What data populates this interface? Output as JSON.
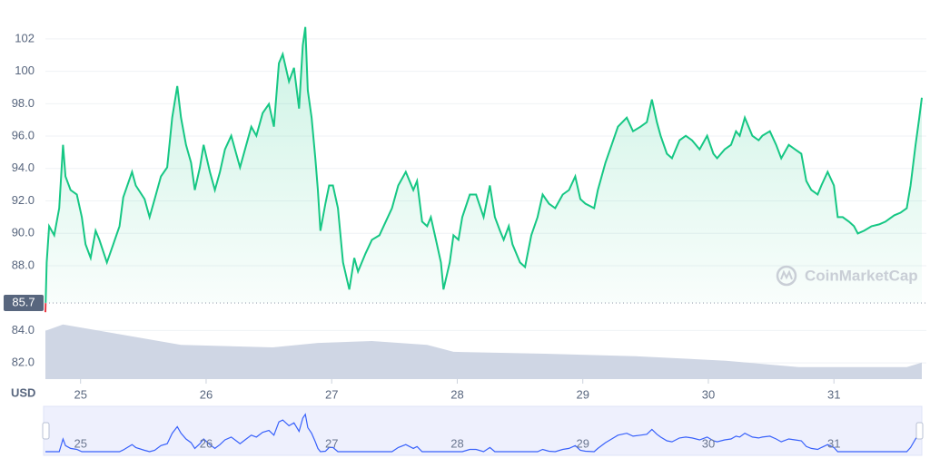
{
  "chart_data": {
    "type": "line",
    "currency": "USD",
    "watermark": "CoinMarketCap",
    "baseline": 85.7,
    "x": [
      24.72,
      24.73,
      24.75,
      24.79,
      24.83,
      24.86,
      24.88,
      24.92,
      24.97,
      25.01,
      25.04,
      25.08,
      25.12,
      25.15,
      25.21,
      25.26,
      25.31,
      25.34,
      25.41,
      25.44,
      25.51,
      25.55,
      25.59,
      25.64,
      25.69,
      25.73,
      25.77,
      25.8,
      25.84,
      25.88,
      25.91,
      25.95,
      25.98,
      26.03,
      26.07,
      26.11,
      26.15,
      26.2,
      26.24,
      26.27,
      26.31,
      26.36,
      26.4,
      26.45,
      26.5,
      26.54,
      26.58,
      26.61,
      26.66,
      26.7,
      26.74,
      26.77,
      26.79,
      26.81,
      26.84,
      26.87,
      26.89,
      26.91,
      26.95,
      26.98,
      27.01,
      27.05,
      27.09,
      27.14,
      27.18,
      27.21,
      27.27,
      27.32,
      27.38,
      27.43,
      27.48,
      27.53,
      27.59,
      27.65,
      27.68,
      27.72,
      27.76,
      27.79,
      27.83,
      27.87,
      27.89,
      27.94,
      27.97,
      28.01,
      28.04,
      28.1,
      28.15,
      28.21,
      28.26,
      28.3,
      28.34,
      28.37,
      28.41,
      28.44,
      28.5,
      28.54,
      28.59,
      28.64,
      28.68,
      28.73,
      28.78,
      28.84,
      28.89,
      28.94,
      28.98,
      29.02,
      29.09,
      29.12,
      29.18,
      29.23,
      29.28,
      29.35,
      29.4,
      29.46,
      29.51,
      29.55,
      29.59,
      29.62,
      29.67,
      29.71,
      29.77,
      29.82,
      29.87,
      29.93,
      29.99,
      30.04,
      30.07,
      30.13,
      30.18,
      30.22,
      30.25,
      30.29,
      30.35,
      30.4,
      30.43,
      30.49,
      30.54,
      30.58,
      30.64,
      30.69,
      30.74,
      30.78,
      30.82,
      30.87,
      30.9,
      30.95,
      31.0,
      31.03,
      31.07,
      31.12,
      31.16,
      31.19,
      31.24,
      31.3,
      31.36,
      31.41,
      31.48,
      31.53,
      31.58,
      31.61,
      31.65,
      31.68,
      31.7
    ],
    "series": [
      {
        "color": "#16c784",
        "down_color": "#ea3943",
        "values": [
          85.13,
          88.2,
          90.44,
          89.88,
          91.55,
          95.46,
          93.51,
          92.67,
          92.39,
          91.0,
          89.32,
          88.48,
          90.16,
          89.6,
          88.2,
          89.32,
          90.44,
          92.22,
          93.79,
          92.95,
          92.11,
          91.0,
          92.11,
          93.51,
          94.07,
          97.14,
          99.09,
          97.14,
          95.46,
          94.35,
          92.67,
          94.07,
          95.46,
          93.79,
          92.67,
          93.79,
          95.18,
          96.02,
          94.91,
          94.07,
          95.18,
          96.58,
          96.02,
          97.42,
          97.98,
          96.58,
          100.49,
          101.05,
          99.37,
          100.21,
          97.7,
          101.61,
          102.73,
          98.82,
          97.14,
          94.63,
          92.67,
          90.16,
          91.83,
          92.95,
          92.95,
          91.55,
          88.2,
          86.53,
          88.48,
          87.64,
          88.76,
          89.6,
          89.88,
          90.72,
          91.55,
          92.95,
          93.79,
          92.67,
          93.23,
          90.72,
          90.44,
          91.0,
          89.6,
          88.2,
          86.53,
          88.2,
          89.88,
          89.6,
          91.0,
          92.39,
          92.39,
          91.0,
          92.95,
          91.0,
          90.16,
          89.6,
          90.44,
          89.32,
          88.2,
          87.92,
          89.88,
          91.0,
          92.39,
          91.83,
          91.55,
          92.39,
          92.67,
          93.51,
          92.11,
          91.83,
          91.55,
          92.67,
          94.35,
          95.46,
          96.58,
          97.14,
          96.3,
          96.58,
          96.86,
          98.26,
          96.86,
          96.02,
          94.91,
          94.63,
          95.74,
          96.02,
          95.74,
          95.18,
          96.02,
          94.91,
          94.63,
          95.18,
          95.46,
          96.3,
          96.02,
          97.14,
          96.02,
          95.74,
          96.02,
          96.3,
          95.46,
          94.63,
          95.46,
          95.18,
          94.91,
          93.23,
          92.67,
          92.39,
          92.95,
          93.79,
          92.95,
          91.0,
          91.0,
          90.72,
          90.44,
          89.99,
          90.16,
          90.44,
          90.55,
          90.72,
          91.11,
          91.27,
          91.55,
          92.95,
          95.46,
          97.14,
          98.37
        ]
      }
    ],
    "volume": {
      "color": "#cfd6e4",
      "x": [
        24.72,
        24.86,
        25.3,
        25.8,
        26.53,
        26.89,
        27.32,
        27.76,
        27.97,
        28.7,
        29.42,
        30.14,
        30.72,
        31.58,
        31.7
      ],
      "values": [
        76,
        86,
        71,
        54,
        50,
        57,
        60,
        54,
        43,
        40,
        36,
        29,
        19,
        19,
        26
      ],
      "lim": [
        0,
        100
      ]
    },
    "xlim": [
      24.72,
      31.7
    ],
    "xticks": [
      25,
      26,
      27,
      28,
      29,
      30,
      31
    ],
    "ylim": [
      81.0,
      104.4
    ],
    "yticks": [
      {
        "value": 82,
        "label": "82.0"
      },
      {
        "value": 84,
        "label": "84.0"
      },
      {
        "value": 88,
        "label": "88.0"
      },
      {
        "value": 90,
        "label": "90.0"
      },
      {
        "value": 92,
        "label": "92.0"
      },
      {
        "value": 94,
        "label": "94.0"
      },
      {
        "value": 96,
        "label": "96.0"
      },
      {
        "value": 98,
        "label": "98.0"
      },
      100,
      102
    ],
    "grid": true
  }
}
